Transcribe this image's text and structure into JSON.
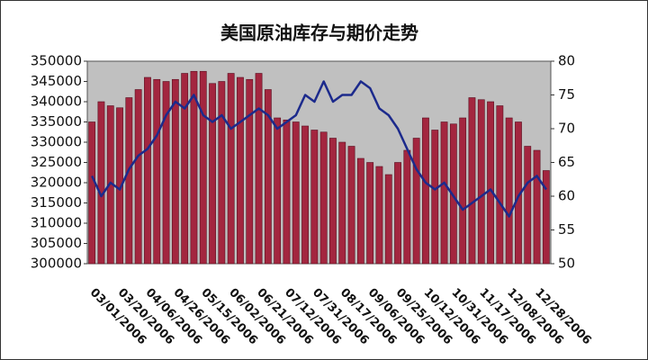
{
  "chart_data": {
    "type": "bar_line",
    "title": "美国原油库存与期价走势",
    "categories": [
      "03/01/2006",
      null,
      null,
      "03/20/2006",
      null,
      null,
      "04/06/2006",
      null,
      null,
      "04/26/2006",
      null,
      null,
      "05/15/2006",
      null,
      null,
      "06/02/2006",
      null,
      null,
      "06/21/2006",
      null,
      null,
      "07/12/2006",
      null,
      null,
      "07/31/2006",
      null,
      null,
      "08/17/2006",
      null,
      null,
      "09/06/2006",
      null,
      null,
      "09/25/2006",
      null,
      null,
      "10/12/2006",
      null,
      null,
      "10/31/2006",
      null,
      null,
      "11/17/2006",
      null,
      null,
      "12/08/2006",
      null,
      null,
      "12/28/2006",
      null
    ],
    "series": [
      {
        "type": "bar",
        "color": "#a3263f",
        "values": [
          335000,
          340000,
          339000,
          338500,
          341000,
          343000,
          346000,
          345500,
          345000,
          345500,
          347000,
          347500,
          347500,
          344500,
          345000,
          347000,
          346000,
          345500,
          347000,
          343000,
          336000,
          335500,
          335000,
          334000,
          333000,
          332500,
          331000,
          330000,
          329000,
          326000,
          325000,
          324000,
          322000,
          325000,
          328000,
          331000,
          336000,
          333000,
          335000,
          334500,
          336000,
          341000,
          340500,
          340000,
          339000,
          336000,
          335000,
          329000,
          328000,
          323000
        ]
      },
      {
        "type": "line",
        "axis": "y2",
        "color": "#1c2a8c",
        "values": [
          63,
          60,
          62,
          61,
          64,
          66,
          67,
          69,
          72,
          74,
          73,
          75,
          72,
          71,
          72,
          70,
          71,
          72,
          73,
          72,
          70,
          71,
          72,
          75,
          74,
          77,
          74,
          75,
          75,
          77,
          76,
          73,
          72,
          70,
          67,
          64,
          62,
          61,
          62,
          60,
          58,
          59,
          60,
          61,
          59,
          57,
          60,
          62,
          63,
          61
        ]
      }
    ],
    "ylim": [
      300000,
      350000
    ],
    "yticks": [
      300000,
      305000,
      310000,
      315000,
      320000,
      325000,
      330000,
      335000,
      340000,
      345000,
      350000
    ],
    "y2lim": [
      50,
      80
    ],
    "y2ticks": [
      50,
      55,
      60,
      65,
      70,
      75,
      80
    ],
    "plot_background": "#c0c0c0"
  }
}
